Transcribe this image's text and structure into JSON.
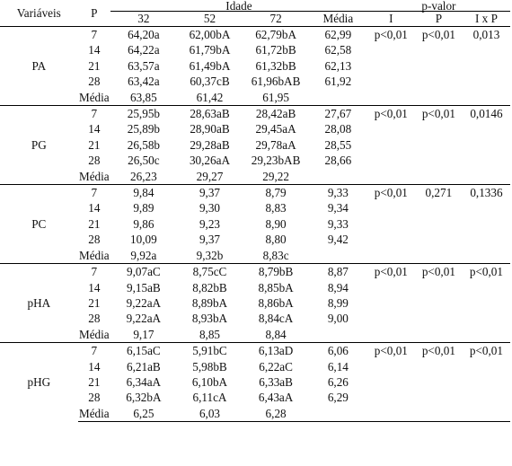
{
  "header": {
    "variaveis": "Variáveis",
    "p": "P",
    "idade": "Idade",
    "pvalor": "p-valor",
    "ages": [
      "32",
      "52",
      "72"
    ],
    "media": "Média",
    "pv_cols": [
      "I",
      "P",
      "I x P"
    ]
  },
  "groups": [
    {
      "name": "PA",
      "rows": [
        {
          "p": "7",
          "v": [
            "64,20a",
            "62,00bA",
            "62,79bA"
          ],
          "m": "62,99"
        },
        {
          "p": "14",
          "v": [
            "64,22a",
            "61,79bA",
            "61,72bB"
          ],
          "m": "62,58"
        },
        {
          "p": "21",
          "v": [
            "63,57a",
            "61,49bA",
            "61,32bB"
          ],
          "m": "62,13"
        },
        {
          "p": "28",
          "v": [
            "63,42a",
            "60,37cB",
            "61,96bAB"
          ],
          "m": "61,92"
        },
        {
          "p": "Média",
          "v": [
            "63,85",
            "61,42",
            "61,95"
          ],
          "m": ""
        }
      ],
      "pvalues": [
        "p<0,01",
        "p<0,01",
        "0,013"
      ]
    },
    {
      "name": "PG",
      "rows": [
        {
          "p": "7",
          "v": [
            "25,95b",
            "28,63aB",
            "28,42aB"
          ],
          "m": "27,67"
        },
        {
          "p": "14",
          "v": [
            "25,89b",
            "28,90aB",
            "29,45aA"
          ],
          "m": "28,08"
        },
        {
          "p": "21",
          "v": [
            "26,58b",
            "29,28aB",
            "29,78aA"
          ],
          "m": "28,55"
        },
        {
          "p": "28",
          "v": [
            "26,50c",
            "30,26aA",
            "29,23bAB"
          ],
          "m": "28,66"
        },
        {
          "p": "Média",
          "v": [
            "26,23",
            "29,27",
            "29,22"
          ],
          "m": ""
        }
      ],
      "pvalues": [
        "p<0,01",
        "p<0,01",
        "0,0146"
      ]
    },
    {
      "name": "PC",
      "rows": [
        {
          "p": "7",
          "v": [
            "9,84",
            "9,37",
            "8,79"
          ],
          "m": "9,33"
        },
        {
          "p": "14",
          "v": [
            "9,89",
            "9,30",
            "8,83"
          ],
          "m": "9,34"
        },
        {
          "p": "21",
          "v": [
            "9,86",
            "9,23",
            "8,90"
          ],
          "m": "9,33"
        },
        {
          "p": "28",
          "v": [
            "10,09",
            "9,37",
            "8,80"
          ],
          "m": "9,42"
        },
        {
          "p": "Média",
          "v": [
            "9,92a",
            "9,32b",
            "8,83c"
          ],
          "m": ""
        }
      ],
      "pvalues": [
        "p<0,01",
        "0,271",
        "0,1336"
      ]
    },
    {
      "name": "pHA",
      "rows": [
        {
          "p": "7",
          "v": [
            "9,07aC",
            "8,75cC",
            "8,79bB"
          ],
          "m": "8,87"
        },
        {
          "p": "14",
          "v": [
            "9,15aB",
            "8,82bB",
            "8,85bA"
          ],
          "m": "8,94"
        },
        {
          "p": "21",
          "v": [
            "9,22aA",
            "8,89bA",
            "8,86bA"
          ],
          "m": "8,99"
        },
        {
          "p": "28",
          "v": [
            "9,22aA",
            "8,93bA",
            "8,84cA"
          ],
          "m": "9,00"
        },
        {
          "p": "Média",
          "v": [
            "9,17",
            "8,85",
            "8,84"
          ],
          "m": ""
        }
      ],
      "pvalues": [
        "p<0,01",
        "p<0,01",
        "p<0,01"
      ]
    },
    {
      "name": "pHG",
      "rows": [
        {
          "p": "7",
          "v": [
            "6,15aC",
            "5,91bC",
            "6,13aD"
          ],
          "m": "6,06"
        },
        {
          "p": "14",
          "v": [
            "6,21aB",
            "5,98bB",
            "6,22aC"
          ],
          "m": "6,14"
        },
        {
          "p": "21",
          "v": [
            "6,34aA",
            "6,10bA",
            "6,33aB"
          ],
          "m": "6,26"
        },
        {
          "p": "28",
          "v": [
            "6,32bA",
            "6,11cA",
            "6,43aA"
          ],
          "m": "6,29"
        },
        {
          "p": "Média",
          "v": [
            "6,25",
            "6,03",
            "6,28"
          ],
          "m": ""
        }
      ],
      "pvalues": [
        "p<0,01",
        "p<0,01",
        "p<0,01"
      ]
    }
  ]
}
